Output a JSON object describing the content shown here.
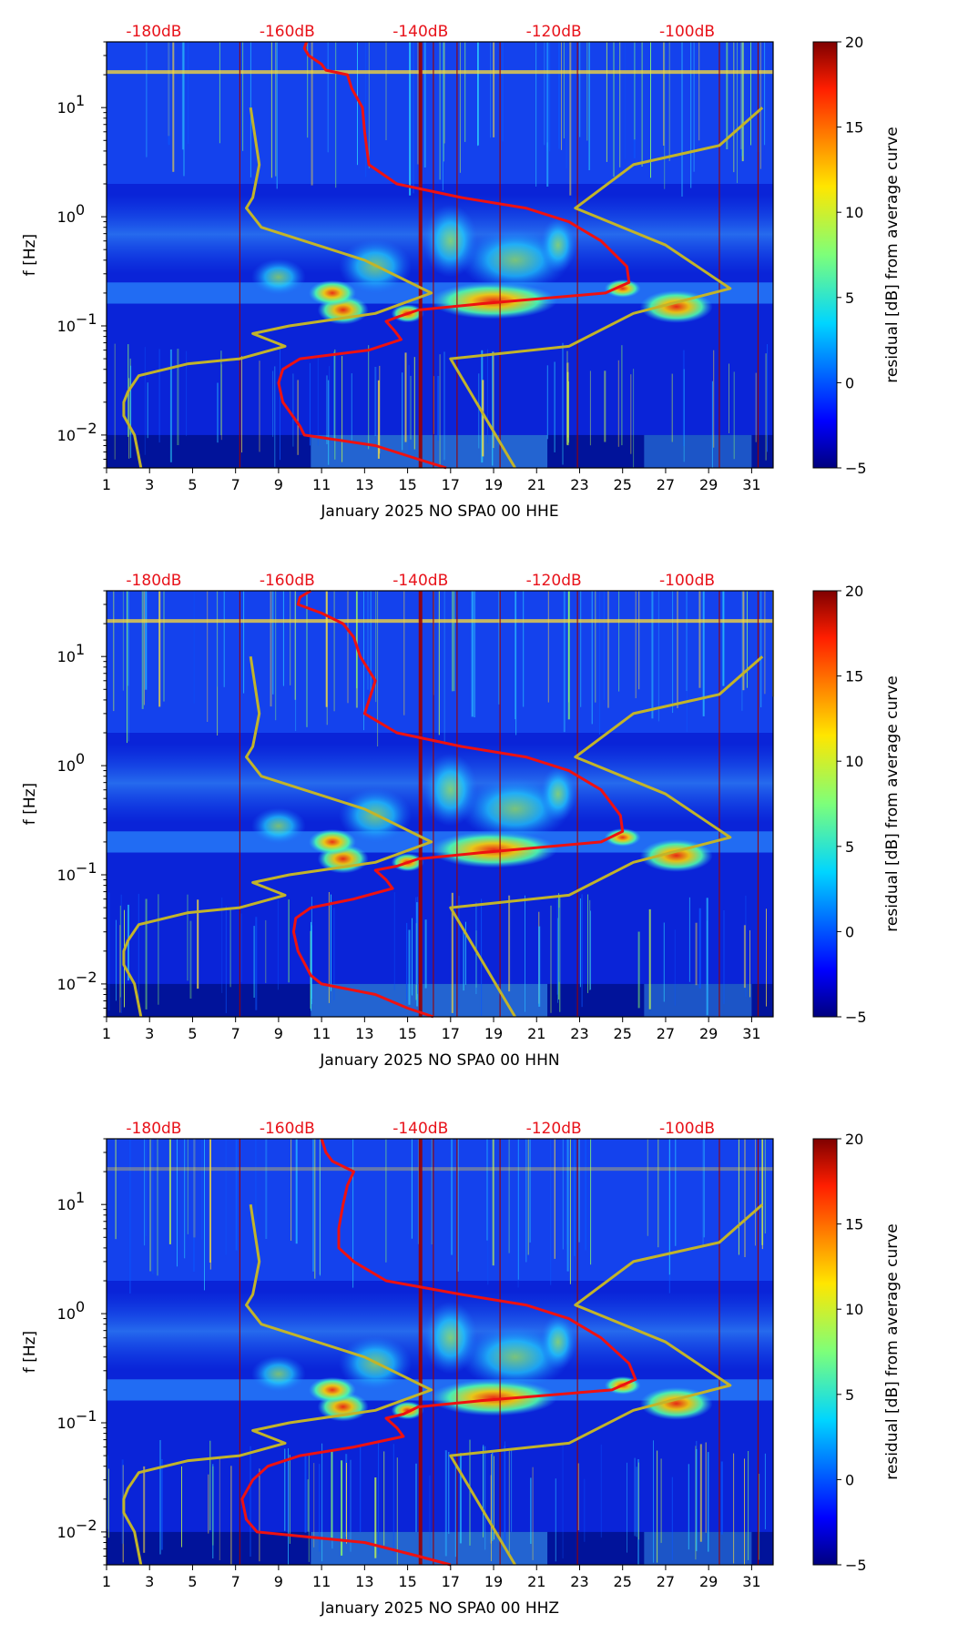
{
  "colors": {
    "psd_curve": "#ee1111",
    "noise_model": "#c2b42a",
    "db_label": "#e8121a",
    "day_marker": "#990000"
  },
  "chart_data": [
    {
      "type": "heatmap",
      "xlabel": "January 2025 NO SPA0 00 HHE",
      "ylabel": "f [Hz]",
      "x_range": [
        1,
        32
      ],
      "x_ticks": [
        "1",
        "3",
        "5",
        "7",
        "9",
        "11",
        "13",
        "15",
        "17",
        "19",
        "21",
        "23",
        "25",
        "27",
        "29",
        "31"
      ],
      "y_range_hz": [
        0.005,
        40
      ],
      "y_ticks": [
        {
          "value": 0.01,
          "base": "10",
          "exp": "−2"
        },
        {
          "value": 0.1,
          "base": "10",
          "exp": "−1"
        },
        {
          "value": 1,
          "base": "10",
          "exp": "0"
        },
        {
          "value": 10,
          "base": "10",
          "exp": "1"
        }
      ],
      "top_axis_labels": [
        "-180dB",
        "-160dB",
        "-140dB",
        "-120dB",
        "-100dB"
      ],
      "colorbar": {
        "label": "residual [dB] from average curve",
        "range": [
          -5,
          20
        ],
        "ticks": [
          "−5",
          "0",
          "5",
          "10",
          "15",
          "20"
        ]
      },
      "psd_curve_days": [
        [
          40,
          10.3
        ],
        [
          35,
          10.2
        ],
        [
          30,
          10.4
        ],
        [
          25,
          11.0
        ],
        [
          22,
          11.2
        ],
        [
          20,
          12.2
        ],
        [
          15,
          12.4
        ],
        [
          10,
          12.9
        ],
        [
          6,
          13.0
        ],
        [
          3,
          13.2
        ],
        [
          2,
          14.5
        ],
        [
          1.5,
          17.5
        ],
        [
          1.2,
          20.5
        ],
        [
          0.9,
          22.5
        ],
        [
          0.6,
          24.0
        ],
        [
          0.35,
          25.2
        ],
        [
          0.25,
          25.3
        ],
        [
          0.2,
          24.2
        ],
        [
          0.16,
          18.5
        ],
        [
          0.14,
          15.5
        ],
        [
          0.12,
          14.5
        ],
        [
          0.11,
          14.0
        ],
        [
          0.09,
          14.4
        ],
        [
          0.075,
          14.7
        ],
        [
          0.06,
          13.2
        ],
        [
          0.05,
          10.0
        ],
        [
          0.04,
          9.2
        ],
        [
          0.03,
          9.0
        ],
        [
          0.02,
          9.2
        ],
        [
          0.012,
          10.0
        ],
        [
          0.01,
          10.2
        ],
        [
          0.008,
          13.5
        ],
        [
          0.006,
          15.5
        ],
        [
          0.005,
          16.8
        ]
      ],
      "noise_model_low_days": [
        [
          10,
          7.7
        ],
        [
          3,
          8.1
        ],
        [
          1.5,
          7.8
        ],
        [
          1.2,
          7.5
        ],
        [
          0.8,
          8.2
        ],
        [
          0.4,
          13.0
        ],
        [
          0.2,
          16.1
        ],
        [
          0.13,
          13.5
        ],
        [
          0.1,
          9.5
        ],
        [
          0.085,
          7.8
        ],
        [
          0.065,
          9.3
        ],
        [
          0.05,
          7.2
        ],
        [
          0.045,
          4.8
        ],
        [
          0.035,
          2.5
        ],
        [
          0.025,
          2.0
        ],
        [
          0.02,
          1.8
        ],
        [
          0.015,
          1.8
        ],
        [
          0.01,
          2.3
        ],
        [
          0.005,
          2.6
        ]
      ],
      "noise_model_high_days": [
        [
          10,
          31.5
        ],
        [
          4.5,
          29.5
        ],
        [
          3,
          25.5
        ],
        [
          1.2,
          22.8
        ],
        [
          0.55,
          27.0
        ],
        [
          0.22,
          30.0
        ],
        [
          0.13,
          25.5
        ],
        [
          0.065,
          22.5
        ],
        [
          0.05,
          17.0
        ],
        [
          0.005,
          20.0
        ]
      ]
    },
    {
      "type": "heatmap",
      "xlabel": "January 2025 NO SPA0 00 HHN",
      "ylabel": "f [Hz]",
      "x_range": [
        1,
        32
      ],
      "x_ticks": [
        "1",
        "3",
        "5",
        "7",
        "9",
        "11",
        "13",
        "15",
        "17",
        "19",
        "21",
        "23",
        "25",
        "27",
        "29",
        "31"
      ],
      "y_range_hz": [
        0.005,
        40
      ],
      "y_ticks": [
        {
          "value": 0.01,
          "base": "10",
          "exp": "−2"
        },
        {
          "value": 0.1,
          "base": "10",
          "exp": "−1"
        },
        {
          "value": 1,
          "base": "10",
          "exp": "0"
        },
        {
          "value": 10,
          "base": "10",
          "exp": "1"
        }
      ],
      "top_axis_labels": [
        "-180dB",
        "-160dB",
        "-140dB",
        "-120dB",
        "-100dB"
      ],
      "colorbar": {
        "label": "residual [dB] from average curve",
        "range": [
          -5,
          20
        ],
        "ticks": [
          "−5",
          "0",
          "5",
          "10",
          "15",
          "20"
        ]
      },
      "psd_curve_days": [
        [
          40,
          10.5
        ],
        [
          35,
          10.0
        ],
        [
          30,
          9.9
        ],
        [
          25,
          11.0
        ],
        [
          20,
          12.0
        ],
        [
          15,
          12.5
        ],
        [
          10,
          12.8
        ],
        [
          6,
          13.5
        ],
        [
          3,
          13.0
        ],
        [
          2,
          14.5
        ],
        [
          1.5,
          17.5
        ],
        [
          1.2,
          20.5
        ],
        [
          0.9,
          22.5
        ],
        [
          0.6,
          24.0
        ],
        [
          0.35,
          24.9
        ],
        [
          0.25,
          25.0
        ],
        [
          0.2,
          24.0
        ],
        [
          0.16,
          18.5
        ],
        [
          0.14,
          15.5
        ],
        [
          0.12,
          14.5
        ],
        [
          0.11,
          13.5
        ],
        [
          0.09,
          14.0
        ],
        [
          0.075,
          14.3
        ],
        [
          0.06,
          12.5
        ],
        [
          0.05,
          10.5
        ],
        [
          0.04,
          9.8
        ],
        [
          0.03,
          9.7
        ],
        [
          0.02,
          9.9
        ],
        [
          0.012,
          10.5
        ],
        [
          0.01,
          11.0
        ],
        [
          0.008,
          13.5
        ],
        [
          0.006,
          15.0
        ],
        [
          0.005,
          16.2
        ]
      ],
      "noise_model_low_days": [
        [
          10,
          7.7
        ],
        [
          3,
          8.1
        ],
        [
          1.5,
          7.8
        ],
        [
          1.2,
          7.5
        ],
        [
          0.8,
          8.2
        ],
        [
          0.4,
          13.0
        ],
        [
          0.2,
          16.1
        ],
        [
          0.13,
          13.5
        ],
        [
          0.1,
          9.5
        ],
        [
          0.085,
          7.8
        ],
        [
          0.065,
          9.3
        ],
        [
          0.05,
          7.2
        ],
        [
          0.045,
          4.8
        ],
        [
          0.035,
          2.5
        ],
        [
          0.025,
          2.0
        ],
        [
          0.02,
          1.8
        ],
        [
          0.015,
          1.8
        ],
        [
          0.01,
          2.3
        ],
        [
          0.005,
          2.6
        ]
      ],
      "noise_model_high_days": [
        [
          10,
          31.5
        ],
        [
          4.5,
          29.5
        ],
        [
          3,
          25.5
        ],
        [
          1.2,
          22.8
        ],
        [
          0.55,
          27.0
        ],
        [
          0.22,
          30.0
        ],
        [
          0.13,
          25.5
        ],
        [
          0.065,
          22.5
        ],
        [
          0.05,
          17.0
        ],
        [
          0.005,
          20.0
        ]
      ]
    },
    {
      "type": "heatmap",
      "xlabel": "January 2025 NO SPA0 00 HHZ",
      "ylabel": "f [Hz]",
      "x_range": [
        1,
        32
      ],
      "x_ticks": [
        "1",
        "3",
        "5",
        "7",
        "9",
        "11",
        "13",
        "15",
        "17",
        "19",
        "21",
        "23",
        "25",
        "27",
        "29",
        "31"
      ],
      "y_range_hz": [
        0.005,
        40
      ],
      "y_ticks": [
        {
          "value": 0.01,
          "base": "10",
          "exp": "−2"
        },
        {
          "value": 0.1,
          "base": "10",
          "exp": "−1"
        },
        {
          "value": 1,
          "base": "10",
          "exp": "0"
        },
        {
          "value": 10,
          "base": "10",
          "exp": "1"
        }
      ],
      "top_axis_labels": [
        "-180dB",
        "-160dB",
        "-140dB",
        "-120dB",
        "-100dB"
      ],
      "colorbar": {
        "label": "residual [dB] from average curve",
        "range": [
          -5,
          20
        ],
        "ticks": [
          "−5",
          "0",
          "5",
          "10",
          "15",
          "20"
        ]
      },
      "psd_curve_days": [
        [
          40,
          11.0
        ],
        [
          30,
          11.2
        ],
        [
          25,
          11.5
        ],
        [
          20,
          12.5
        ],
        [
          15,
          12.2
        ],
        [
          10,
          12.0
        ],
        [
          6,
          11.8
        ],
        [
          4,
          11.8
        ],
        [
          3,
          12.5
        ],
        [
          2,
          14.0
        ],
        [
          1.5,
          17.5
        ],
        [
          1.2,
          20.5
        ],
        [
          0.9,
          22.5
        ],
        [
          0.6,
          24.0
        ],
        [
          0.35,
          25.3
        ],
        [
          0.25,
          25.6
        ],
        [
          0.2,
          24.5
        ],
        [
          0.16,
          18.5
        ],
        [
          0.14,
          15.5
        ],
        [
          0.12,
          14.8
        ],
        [
          0.11,
          14.0
        ],
        [
          0.09,
          14.5
        ],
        [
          0.075,
          14.8
        ],
        [
          0.06,
          12.5
        ],
        [
          0.05,
          10.0
        ],
        [
          0.04,
          8.5
        ],
        [
          0.03,
          7.8
        ],
        [
          0.02,
          7.3
        ],
        [
          0.013,
          7.5
        ],
        [
          0.01,
          8.0
        ],
        [
          0.008,
          13.0
        ],
        [
          0.006,
          15.5
        ],
        [
          0.005,
          17.0
        ]
      ],
      "noise_model_low_days": [
        [
          10,
          7.7
        ],
        [
          3,
          8.1
        ],
        [
          1.5,
          7.8
        ],
        [
          1.2,
          7.5
        ],
        [
          0.8,
          8.2
        ],
        [
          0.4,
          13.0
        ],
        [
          0.2,
          16.1
        ],
        [
          0.13,
          13.5
        ],
        [
          0.1,
          9.5
        ],
        [
          0.085,
          7.8
        ],
        [
          0.065,
          9.3
        ],
        [
          0.05,
          7.2
        ],
        [
          0.045,
          4.8
        ],
        [
          0.035,
          2.5
        ],
        [
          0.025,
          2.0
        ],
        [
          0.02,
          1.8
        ],
        [
          0.015,
          1.8
        ],
        [
          0.01,
          2.3
        ],
        [
          0.005,
          2.6
        ]
      ],
      "noise_model_high_days": [
        [
          10,
          31.5
        ],
        [
          4.5,
          29.5
        ],
        [
          3,
          25.5
        ],
        [
          1.2,
          22.8
        ],
        [
          0.55,
          27.0
        ],
        [
          0.22,
          30.0
        ],
        [
          0.13,
          25.5
        ],
        [
          0.065,
          22.5
        ],
        [
          0.05,
          17.0
        ],
        [
          0.005,
          20.0
        ]
      ]
    }
  ]
}
